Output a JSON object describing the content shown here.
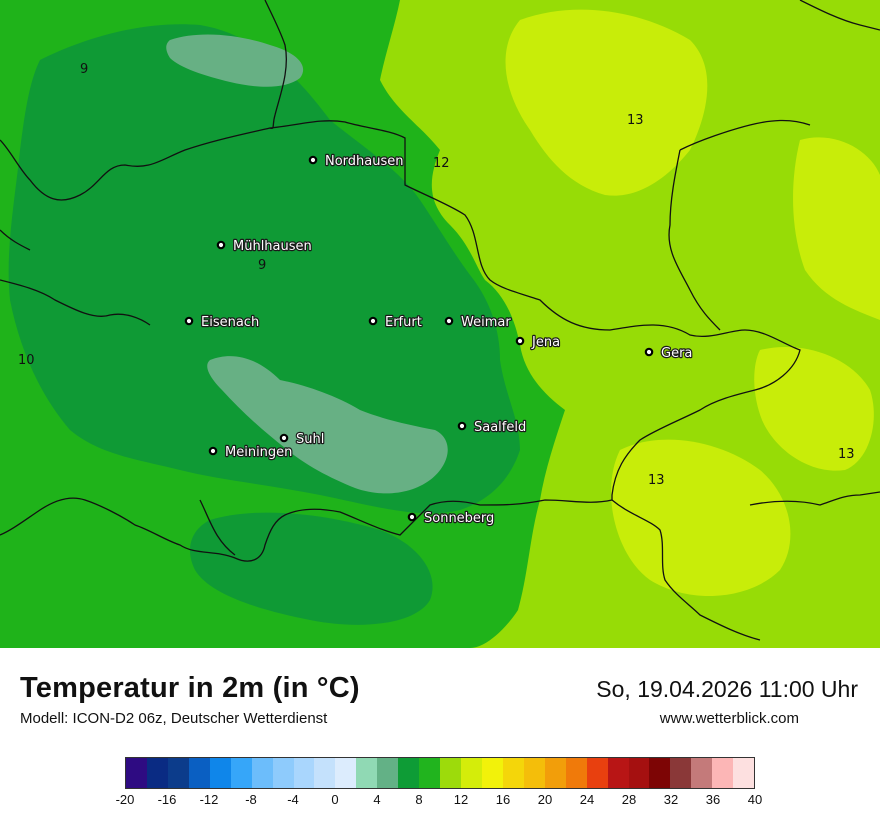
{
  "map": {
    "colors": {
      "t9": "#0f9a35",
      "t10": "#1fb31a",
      "t12": "#97dc06",
      "t13": "#c8ed09",
      "t7": "#67b084"
    },
    "cities": [
      {
        "name": "Nordhausen",
        "icon": "city-dot-icon"
      },
      {
        "name": "Mühlhausen",
        "icon": "city-dot-icon"
      },
      {
        "name": "Eisenach",
        "icon": "city-dot-icon"
      },
      {
        "name": "Erfurt",
        "icon": "city-dot-icon"
      },
      {
        "name": "Weimar",
        "icon": "city-dot-icon"
      },
      {
        "name": "Jena",
        "icon": "city-dot-icon"
      },
      {
        "name": "Gera",
        "icon": "city-dot-icon"
      },
      {
        "name": "Saalfeld",
        "icon": "city-dot-icon"
      },
      {
        "name": "Suhl",
        "icon": "city-dot-icon"
      },
      {
        "name": "Meiningen",
        "icon": "city-dot-icon"
      },
      {
        "name": "Sonneberg",
        "icon": "city-dot-icon"
      }
    ],
    "value_labels": [
      "9",
      "13",
      "12",
      "9",
      "10",
      "13",
      "13"
    ]
  },
  "footer": {
    "title": "Temperatur in 2m (in °C)",
    "model": "Modell: ICON-D2 06z, Deutscher Wetterdienst",
    "datetime": "So, 19.04.2026 11:00 Uhr",
    "website": "www.wetterblick.com"
  },
  "legend": {
    "ticks": [
      "-20",
      "-16",
      "-12",
      "-8",
      "-4",
      "0",
      "4",
      "8",
      "12",
      "16",
      "20",
      "24",
      "28",
      "32",
      "36",
      "40"
    ],
    "colors": [
      "#2e0b82",
      "#0a2b83",
      "#0c3c8b",
      "#0a5fc2",
      "#0f86ea",
      "#36a6f9",
      "#6cbdfb",
      "#8ecbfc",
      "#a9d6fd",
      "#c4e1fc",
      "#dcecfd",
      "#90d9b4",
      "#63b186",
      "#0e9c36",
      "#21b41e",
      "#9ddb0b",
      "#d4ed0a",
      "#f2f20a",
      "#f4d60a",
      "#f4be0a",
      "#f29e0a",
      "#f07a0a",
      "#e8400f",
      "#b81515",
      "#a51010",
      "#7d0505",
      "#8a3838",
      "#c47a7a",
      "#fcb6b6",
      "#fde0e0"
    ]
  }
}
